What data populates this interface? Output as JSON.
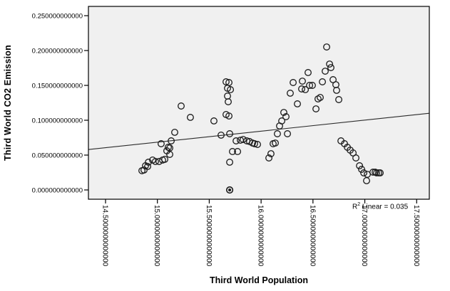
{
  "chart_data": {
    "type": "scatter",
    "title": "",
    "xlabel": "Third World Population",
    "ylabel": "Third World CO2 Emission",
    "xlim": [
      14.335,
      17.622
    ],
    "ylim": [
      -0.0133,
      0.2633
    ],
    "grid": false,
    "legend": "none",
    "plot_bg": "#f0f0f0",
    "border_color": "#000000",
    "marker_color": "#1a1a1a",
    "fit_line_color": "#2b2b2b",
    "x_ticks": [
      14.5,
      15.0,
      15.5,
      16.0,
      16.5,
      17.0,
      17.5
    ],
    "x_tick_labels": [
      "14.5000000000000",
      "15.0000000000000",
      "15.5000000000000",
      "16.0000000000000",
      "16.5000000000000",
      "17.0000000000000",
      "17.5000000000000"
    ],
    "y_ticks": [
      0.0,
      0.05,
      0.1,
      0.15,
      0.2,
      0.25
    ],
    "y_tick_labels": [
      "0.000000000000",
      "0.050000000000",
      "0.100000000000",
      "0.150000000000",
      "0.200000000000",
      "0.250000000000"
    ],
    "points": [
      [
        14.851,
        0.0276
      ],
      [
        14.871,
        0.0286
      ],
      [
        14.885,
        0.0347
      ],
      [
        14.906,
        0.0337
      ],
      [
        14.913,
        0.0398
      ],
      [
        14.954,
        0.0429
      ],
      [
        14.981,
        0.0408
      ],
      [
        15.016,
        0.0408
      ],
      [
        15.05,
        0.0429
      ],
      [
        15.071,
        0.0439
      ],
      [
        15.036,
        0.0663
      ],
      [
        15.091,
        0.0561
      ],
      [
        15.105,
        0.0612
      ],
      [
        15.119,
        0.0602
      ],
      [
        15.119,
        0.051
      ],
      [
        15.133,
        0.0704
      ],
      [
        15.167,
        0.0827
      ],
      [
        15.229,
        0.1204
      ],
      [
        15.318,
        0.1041
      ],
      [
        15.545,
        0.099
      ],
      [
        15.662,
        0.1551
      ],
      [
        15.69,
        0.1541
      ],
      [
        15.676,
        0.1459
      ],
      [
        15.704,
        0.1439
      ],
      [
        15.676,
        0.1347
      ],
      [
        15.683,
        0.1265
      ],
      [
        15.662,
        0.1082
      ],
      [
        15.69,
        0.1061
      ],
      [
        15.614,
        0.0786
      ],
      [
        15.697,
        0.0806
      ],
      [
        15.724,
        0.0551
      ],
      [
        15.773,
        0.0551
      ],
      [
        15.697,
        0.0398
      ],
      [
        15.759,
        0.0704
      ],
      [
        15.8,
        0.0714
      ],
      [
        15.827,
        0.0724
      ],
      [
        15.862,
        0.0704
      ],
      [
        15.889,
        0.0694
      ],
      [
        15.917,
        0.0673
      ],
      [
        15.937,
        0.0663
      ],
      [
        15.965,
        0.0653
      ],
      [
        16.116,
        0.0663
      ],
      [
        16.137,
        0.0673
      ],
      [
        16.095,
        0.052
      ],
      [
        16.075,
        0.0459
      ],
      [
        16.157,
        0.0806
      ],
      [
        16.254,
        0.0806
      ],
      [
        16.178,
        0.0918
      ],
      [
        16.199,
        0.099
      ],
      [
        16.24,
        0.1051
      ],
      [
        16.219,
        0.1112
      ],
      [
        16.281,
        0.1388
      ],
      [
        16.309,
        0.1541
      ],
      [
        16.35,
        0.1235
      ],
      [
        16.391,
        0.1449
      ],
      [
        16.426,
        0.1439
      ],
      [
        16.398,
        0.1561
      ],
      [
        16.453,
        0.1684
      ],
      [
        16.467,
        0.15
      ],
      [
        16.494,
        0.15
      ],
      [
        16.529,
        0.1163
      ],
      [
        16.549,
        0.1306
      ],
      [
        16.57,
        0.1327
      ],
      [
        16.591,
        0.1551
      ],
      [
        16.618,
        0.1704
      ],
      [
        16.632,
        0.2051
      ],
      [
        16.66,
        0.1806
      ],
      [
        16.673,
        0.1755
      ],
      [
        16.694,
        0.1582
      ],
      [
        16.721,
        0.151
      ],
      [
        16.728,
        0.1429
      ],
      [
        16.749,
        0.1296
      ],
      [
        16.77,
        0.0704
      ],
      [
        16.804,
        0.0663
      ],
      [
        16.832,
        0.0612
      ],
      [
        16.859,
        0.0571
      ],
      [
        16.887,
        0.0531
      ],
      [
        16.914,
        0.0459
      ],
      [
        16.949,
        0.0347
      ],
      [
        16.969,
        0.0296
      ],
      [
        16.99,
        0.0245
      ],
      [
        17.024,
        0.0224
      ],
      [
        17.017,
        0.0133
      ],
      [
        17.079,
        0.0255
      ],
      [
        17.1,
        0.0255
      ],
      [
        17.114,
        0.0245
      ],
      [
        17.134,
        0.0245
      ],
      [
        17.148,
        0.0245
      ]
    ],
    "emphasized_point": [
      15.697,
      0.0
    ],
    "fit_line": {
      "x1": 14.335,
      "y1": 0.058,
      "x2": 17.622,
      "y2": 0.11
    },
    "annotation": {
      "prefix": "R",
      "sup": "2",
      "text": " Linear = 0.035"
    }
  }
}
